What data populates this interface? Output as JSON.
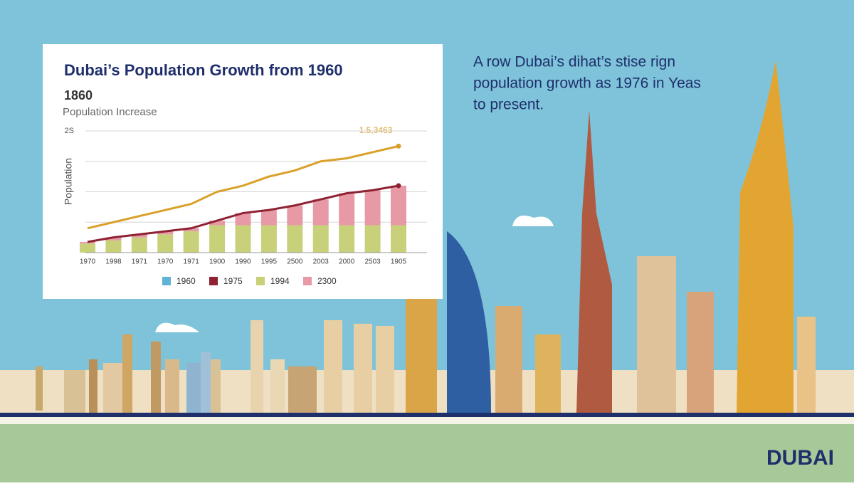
{
  "chart_data": {
    "type": "line",
    "title": "Dubai’s Population Growth from 1960",
    "subtitle": "1860",
    "subtitle2": "Population Increase",
    "y_label": "Population",
    "annotation": "1.5,3463",
    "categories": [
      "1970",
      "1998",
      "1971",
      "1970",
      "1971",
      "1900",
      "1990",
      "1995",
      "2500",
      "2003",
      "2000",
      "2503",
      "1905"
    ],
    "series": [
      {
        "name": "1960",
        "color": "#5fb3d6",
        "values": [
          null,
          null,
          null,
          null,
          null,
          null,
          null,
          null,
          null,
          null,
          null,
          null,
          null
        ]
      },
      {
        "color": "#d9a12a",
        "values": [
          0.8,
          1.0,
          1.2,
          1.4,
          1.6,
          2.0,
          2.2,
          2.5,
          2.7,
          3.0,
          3.1,
          3.3,
          3.5
        ]
      },
      {
        "name": "1975",
        "color": "#8e2233",
        "values": [
          0.35,
          0.5,
          0.6,
          0.7,
          0.8,
          1.05,
          1.3,
          1.4,
          1.55,
          1.75,
          1.95,
          2.05,
          2.2
        ]
      },
      {
        "name": "1994",
        "color": "#c9d07a",
        "kind": "bar",
        "values": [
          0.3,
          0.4,
          0.5,
          0.6,
          0.7,
          0.9,
          0.9,
          0.9,
          0.9,
          0.9,
          0.9,
          0.9,
          0.9
        ]
      },
      {
        "name": "2300",
        "color": "#e79aa5",
        "kind": "bar",
        "values": [
          0.05,
          0.1,
          0.1,
          0.1,
          0.1,
          0.15,
          0.4,
          0.5,
          0.65,
          0.85,
          1.05,
          1.15,
          1.3
        ]
      }
    ],
    "ylim": [
      0,
      4
    ],
    "yticks": [
      {
        "value": 4,
        "label": "2S"
      }
    ],
    "ygrid": [
      0,
      1,
      2,
      3,
      4
    ],
    "grid": true,
    "legend": "bottom"
  },
  "caption": [
    "A row Dubai’s dihat’s stise rign",
    "population growth as 1976 in Yeas",
    "to present."
  ],
  "brand": "DUBAI"
}
